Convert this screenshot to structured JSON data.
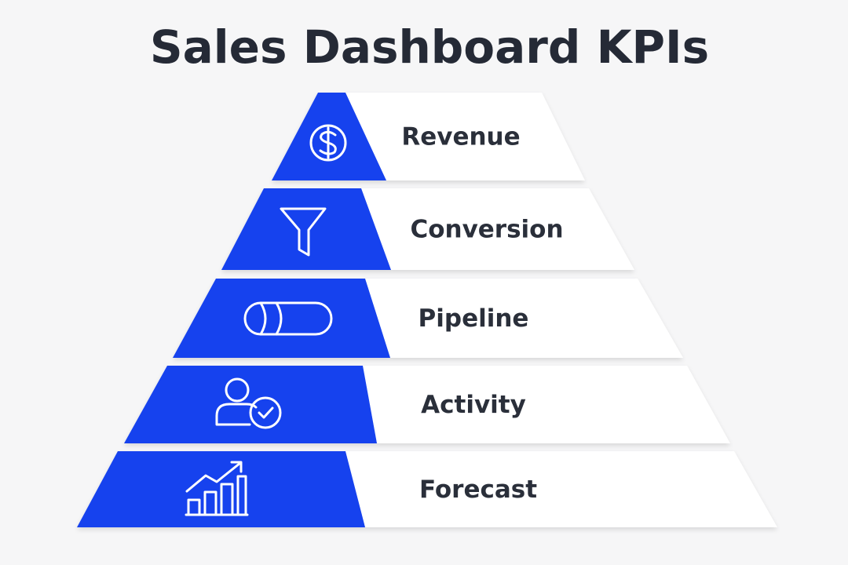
{
  "header": {
    "title": "Sales Dashboard KPIs"
  },
  "levels": [
    {
      "label": "Revenue"
    },
    {
      "label": "Conversion"
    },
    {
      "label": "Pipeline"
    },
    {
      "label": "Activity"
    },
    {
      "label": "Forecast"
    }
  ]
}
